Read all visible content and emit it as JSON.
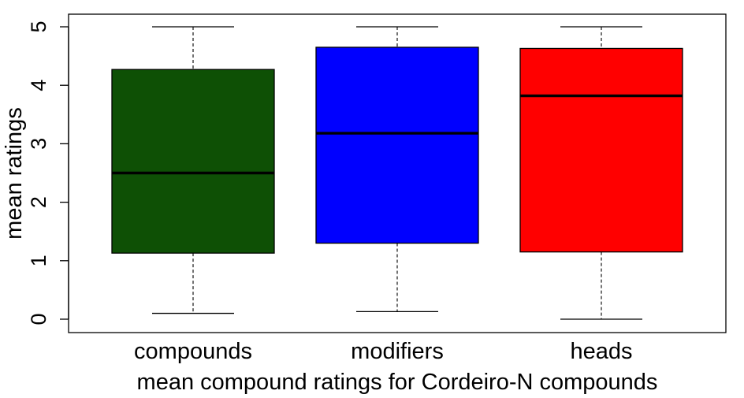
{
  "chart_data": {
    "type": "boxplot",
    "xlabel": "mean compound ratings for Cordeiro-N compounds",
    "ylabel": "mean ratings",
    "ylim": [
      0,
      5
    ],
    "yticks": [
      "0",
      "1",
      "2",
      "3",
      "4",
      "5"
    ],
    "grid": false,
    "legend": "none",
    "categories": [
      "compounds",
      "modifiers",
      "heads"
    ],
    "boxes": [
      {
        "category": "compounds",
        "whisker_low": 0.1,
        "q1": 1.13,
        "median": 2.5,
        "q3": 4.27,
        "whisker_high": 5.0,
        "color": "#0e5005"
      },
      {
        "category": "modifiers",
        "whisker_low": 0.13,
        "q1": 1.3,
        "median": 3.18,
        "q3": 4.65,
        "whisker_high": 5.0,
        "color": "#0000ff"
      },
      {
        "category": "heads",
        "whisker_low": 0.0,
        "q1": 1.15,
        "median": 3.82,
        "q3": 4.63,
        "whisker_high": 5.0,
        "color": "#ff0000"
      }
    ]
  }
}
